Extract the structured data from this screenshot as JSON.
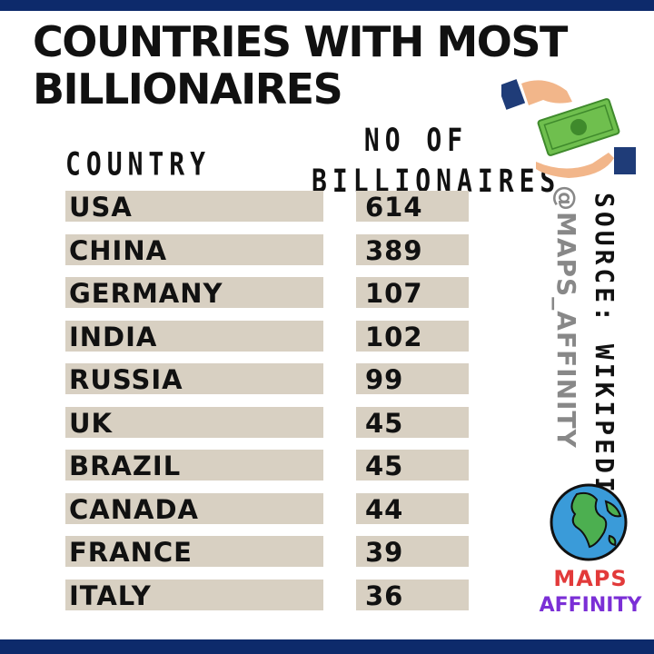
{
  "title_line1": "COUNTRIES WITH MOST",
  "title_line2": "BILLIONAIRES",
  "headers": {
    "country": "COUNTRY",
    "num_line1": "NO OF",
    "num_line2": "BILLIONAIRES"
  },
  "source": "SOURCE: WIKIPEDIA",
  "handle": "@MAPS_AFFINITY",
  "logo": {
    "line1": "MAPS",
    "line2": "AFFINITY"
  },
  "icons": {
    "money": "money-hand-icon",
    "globe": "globe-icon"
  },
  "colors": {
    "row_fill": "#d8d0c2",
    "frame": "#0d2a6b"
  },
  "chart_data": {
    "type": "table",
    "title": "COUNTRIES WITH MOST BILLIONAIRES",
    "columns": [
      "COUNTRY",
      "NO OF BILLIONAIRES"
    ],
    "rows": [
      [
        "USA",
        "614"
      ],
      [
        "CHINA",
        "389"
      ],
      [
        "GERMANY",
        "107"
      ],
      [
        "INDIA",
        "102"
      ],
      [
        "RUSSIA",
        "99"
      ],
      [
        "UK",
        "45"
      ],
      [
        "BRAZIL",
        "45"
      ],
      [
        "CANADA",
        "44"
      ],
      [
        "FRANCE",
        "39"
      ],
      [
        "ITALY",
        "36"
      ]
    ]
  }
}
